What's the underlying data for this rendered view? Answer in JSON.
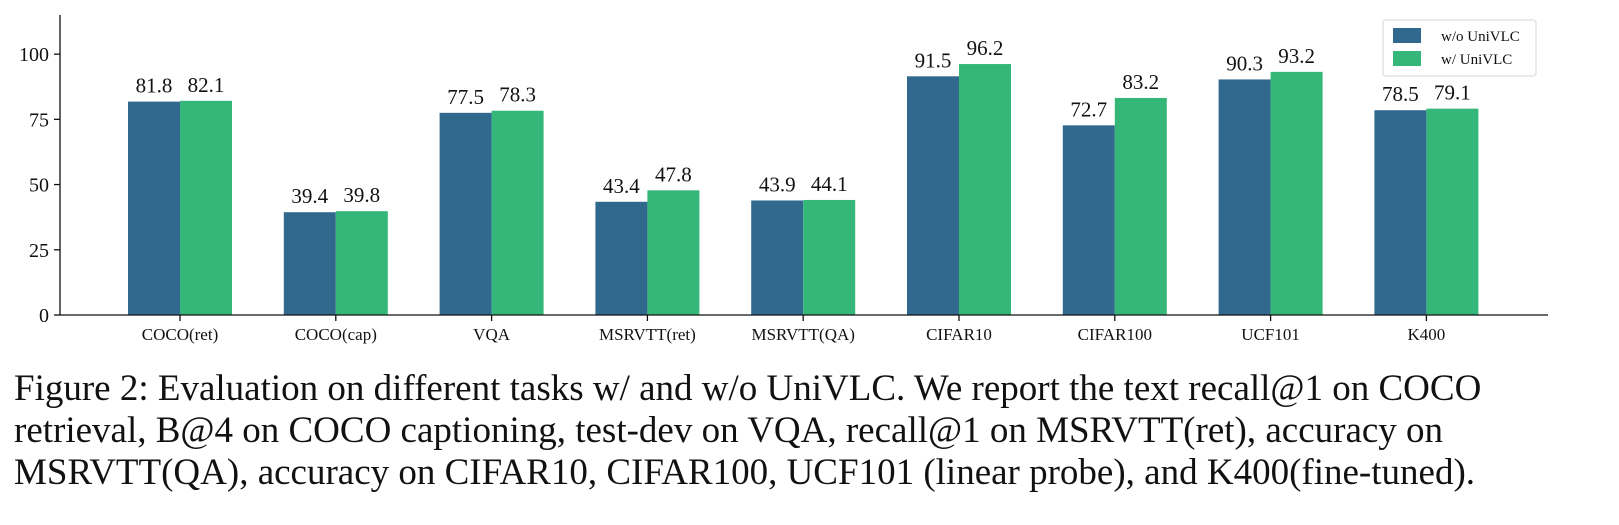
{
  "chart_data": {
    "type": "bar",
    "categories": [
      "COCO(ret)",
      "COCO(cap)",
      "VQA",
      "MSRVTT(ret)",
      "MSRVTT(QA)",
      "CIFAR10",
      "CIFAR100",
      "UCF101",
      "K400"
    ],
    "series": [
      {
        "name": "w/o UniVLC",
        "color": "#31688e",
        "values": [
          81.8,
          39.4,
          77.5,
          43.4,
          43.9,
          91.5,
          72.7,
          90.3,
          78.5
        ]
      },
      {
        "name": "w/ UniVLC",
        "color": "#35b779",
        "values": [
          82.1,
          39.8,
          78.3,
          47.8,
          44.1,
          96.2,
          83.2,
          93.2,
          79.1
        ]
      }
    ],
    "data_labels": [
      [
        "81.8",
        "39.4",
        "77.5",
        "43.4",
        "43.9",
        "91.5",
        "72.7",
        "90.3",
        "78.5"
      ],
      [
        "82.1",
        "39.8",
        "78.3",
        "47.8",
        "44.1",
        "96.2",
        "83.2",
        "93.2",
        "79.1"
      ]
    ],
    "yticks": [
      "0",
      "25",
      "50",
      "75",
      "100"
    ],
    "ylim": [
      0,
      115
    ],
    "grid": false,
    "legend": "top-right"
  },
  "caption": "Figure 2: Evaluation on different tasks w/ and w/o UniVLC. We report the text recall@1 on COCO retrieval, B@4 on COCO captioning, test-dev on VQA, recall@1 on MSRVTT(ret), accuracy on MSRVTT(QA), accuracy on CIFAR10, CIFAR100, UCF101 (linear probe), and K400(fine-tuned)."
}
